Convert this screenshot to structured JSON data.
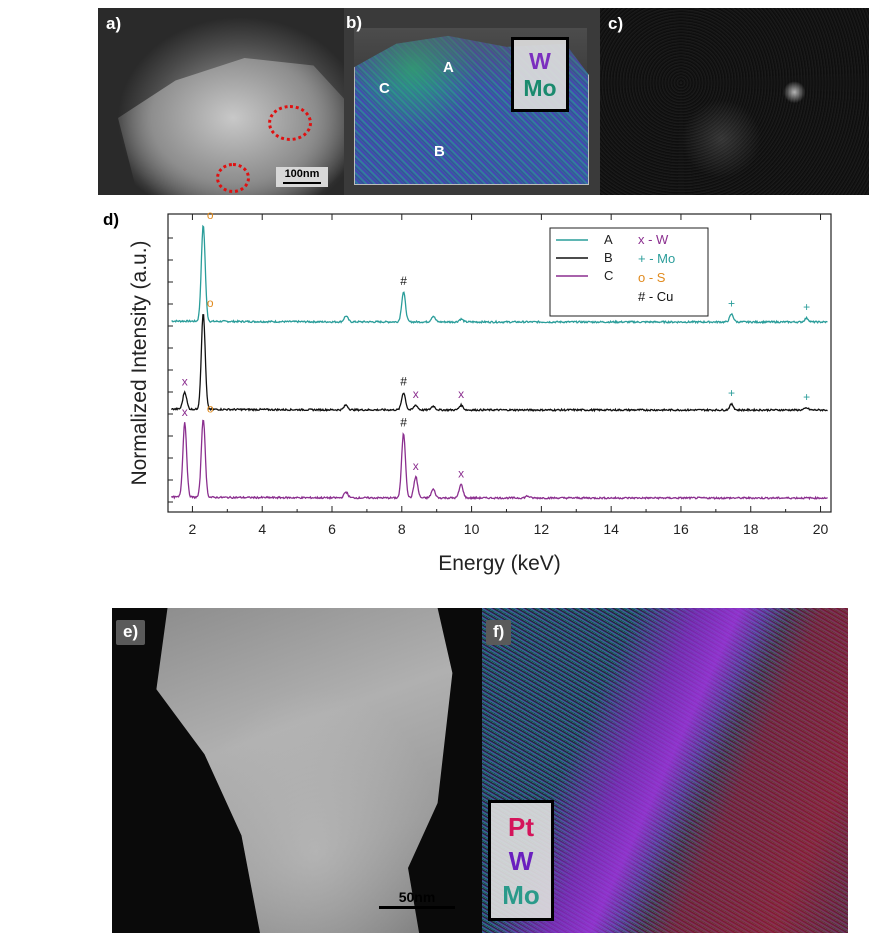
{
  "panels": {
    "a": {
      "label": "a)",
      "scalebar": "100nm"
    },
    "b": {
      "label": "b)",
      "regions": [
        "A",
        "B",
        "C"
      ],
      "legend": [
        "W",
        "Mo"
      ],
      "legend_colors": [
        "#7b2fbf",
        "#1a8a6e"
      ]
    },
    "c": {
      "label": "c)"
    },
    "d": {
      "label": "d)"
    },
    "e": {
      "label": "e)",
      "scalebar": "50nm"
    },
    "f": {
      "label": "f)",
      "legend": [
        "Pt",
        "W",
        "Mo"
      ],
      "legend_colors": [
        "#d4145a",
        "#6a1fbf",
        "#2a9a8a"
      ]
    }
  },
  "chart_data": {
    "type": "line",
    "xlabel": "Energy (keV)",
    "ylabel": "Normalized Intensity (a.u.)",
    "xlim": [
      1.3,
      20.3
    ],
    "xticks": [
      2,
      4,
      6,
      8,
      10,
      12,
      14,
      16,
      18,
      20
    ],
    "series": [
      {
        "name": "A",
        "color": "#2a9d9a",
        "peaks": [
          [
            2.31,
            1.0
          ],
          [
            6.4,
            0.06
          ],
          [
            8.05,
            0.31
          ],
          [
            8.9,
            0.06
          ],
          [
            9.7,
            0.03
          ],
          [
            17.45,
            0.08
          ],
          [
            19.6,
            0.04
          ]
        ]
      },
      {
        "name": "B",
        "color": "#111111",
        "peaks": [
          [
            1.78,
            0.18
          ],
          [
            2.31,
            1.0
          ],
          [
            6.4,
            0.05
          ],
          [
            8.05,
            0.18
          ],
          [
            8.4,
            0.05
          ],
          [
            8.9,
            0.04
          ],
          [
            9.7,
            0.05
          ],
          [
            17.45,
            0.06
          ],
          [
            19.6,
            0.02
          ]
        ]
      },
      {
        "name": "C",
        "color": "#8b2f8f",
        "peaks": [
          [
            1.78,
            0.78
          ],
          [
            2.31,
            0.82
          ],
          [
            6.4,
            0.06
          ],
          [
            8.05,
            0.67
          ],
          [
            8.4,
            0.22
          ],
          [
            8.9,
            0.09
          ],
          [
            9.7,
            0.14
          ],
          [
            11.6,
            0.02
          ]
        ]
      }
    ],
    "peak_labels": [
      {
        "text": "o",
        "x": 2.31,
        "series": "A",
        "color": "#e08a1e"
      },
      {
        "text": "#",
        "x": 8.05,
        "series": "A",
        "color": "#111111"
      },
      {
        "text": "+",
        "x": 17.45,
        "series": "A",
        "color": "#2a9d9a"
      },
      {
        "text": "+",
        "x": 19.6,
        "series": "A",
        "color": "#2a9d9a"
      },
      {
        "text": "x",
        "x": 1.78,
        "series": "B",
        "color": "#8b2f8f"
      },
      {
        "text": "o",
        "x": 2.31,
        "series": "B",
        "color": "#e08a1e"
      },
      {
        "text": "#",
        "x": 8.05,
        "series": "B",
        "color": "#111111"
      },
      {
        "text": "x",
        "x": 8.4,
        "series": "B",
        "color": "#8b2f8f"
      },
      {
        "text": "x",
        "x": 9.7,
        "series": "B",
        "color": "#8b2f8f"
      },
      {
        "text": "+",
        "x": 17.45,
        "series": "B",
        "color": "#2a9d9a"
      },
      {
        "text": "+",
        "x": 19.6,
        "series": "B",
        "color": "#2a9d9a"
      },
      {
        "text": "x",
        "x": 1.78,
        "series": "C",
        "color": "#8b2f8f"
      },
      {
        "text": "o",
        "x": 2.31,
        "series": "C",
        "color": "#e08a1e"
      },
      {
        "text": "#",
        "x": 8.05,
        "series": "C",
        "color": "#111111"
      },
      {
        "text": "x",
        "x": 8.4,
        "series": "C",
        "color": "#8b2f8f"
      },
      {
        "text": "x",
        "x": 9.7,
        "series": "C",
        "color": "#8b2f8f"
      }
    ],
    "legend": {
      "placement": "top-right",
      "lines": [
        {
          "name": "A",
          "color": "#2a9d9a"
        },
        {
          "name": "B",
          "color": "#111111"
        },
        {
          "name": "C",
          "color": "#8b2f8f"
        }
      ],
      "markers": [
        {
          "text": "x - W",
          "color": "#8b2f8f"
        },
        {
          "text": "+ - Mo",
          "color": "#2a9d9a"
        },
        {
          "text": "o - S",
          "color": "#e08a1e"
        },
        {
          "text": "# - Cu",
          "color": "#111111"
        }
      ]
    }
  }
}
